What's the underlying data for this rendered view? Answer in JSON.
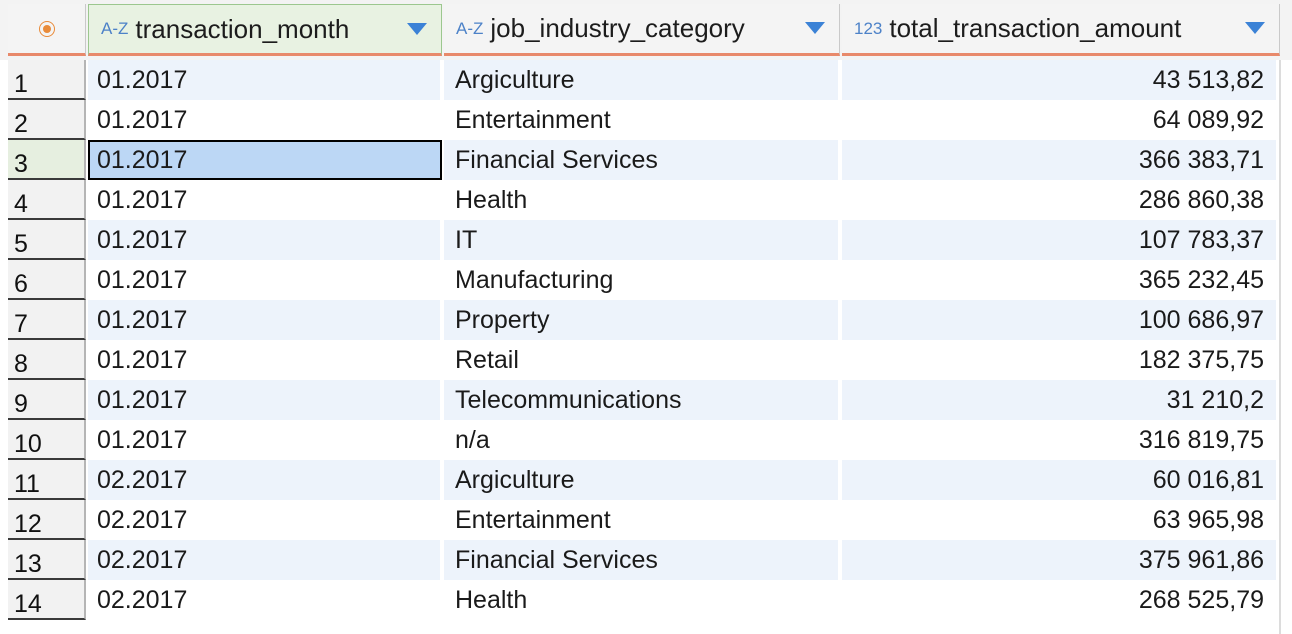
{
  "columns": [
    {
      "type_icon": "A-Z",
      "name": "transaction_month"
    },
    {
      "type_icon": "A-Z",
      "name": "job_industry_category"
    },
    {
      "type_icon": "123",
      "name": "total_transaction_amount"
    }
  ],
  "rows": [
    {
      "n": "1",
      "month": "01.2017",
      "category": "Argiculture",
      "amount": "43 513,82"
    },
    {
      "n": "2",
      "month": "01.2017",
      "category": "Entertainment",
      "amount": "64 089,92"
    },
    {
      "n": "3",
      "month": "01.2017",
      "category": "Financial Services",
      "amount": "366 383,71"
    },
    {
      "n": "4",
      "month": "01.2017",
      "category": "Health",
      "amount": "286 860,38"
    },
    {
      "n": "5",
      "month": "01.2017",
      "category": "IT",
      "amount": "107 783,37"
    },
    {
      "n": "6",
      "month": "01.2017",
      "category": "Manufacturing",
      "amount": "365 232,45"
    },
    {
      "n": "7",
      "month": "01.2017",
      "category": "Property",
      "amount": "100 686,97"
    },
    {
      "n": "8",
      "month": "01.2017",
      "category": "Retail",
      "amount": "182 375,75"
    },
    {
      "n": "9",
      "month": "01.2017",
      "category": "Telecommunications",
      "amount": "31 210,2"
    },
    {
      "n": "10",
      "month": "01.2017",
      "category": "n/a",
      "amount": "316 819,75"
    },
    {
      "n": "11",
      "month": "02.2017",
      "category": "Argiculture",
      "amount": "60 016,81"
    },
    {
      "n": "12",
      "month": "02.2017",
      "category": "Entertainment",
      "amount": "63 965,98"
    },
    {
      "n": "13",
      "month": "02.2017",
      "category": "Financial Services",
      "amount": "375 961,86"
    },
    {
      "n": "14",
      "month": "02.2017",
      "category": "Health",
      "amount": "268 525,79"
    }
  ],
  "colors": {
    "accent": "#e8896a",
    "selection": "#bcd7f5",
    "row_alt": "#edf3fb",
    "type_icon": "#4d82c8"
  }
}
